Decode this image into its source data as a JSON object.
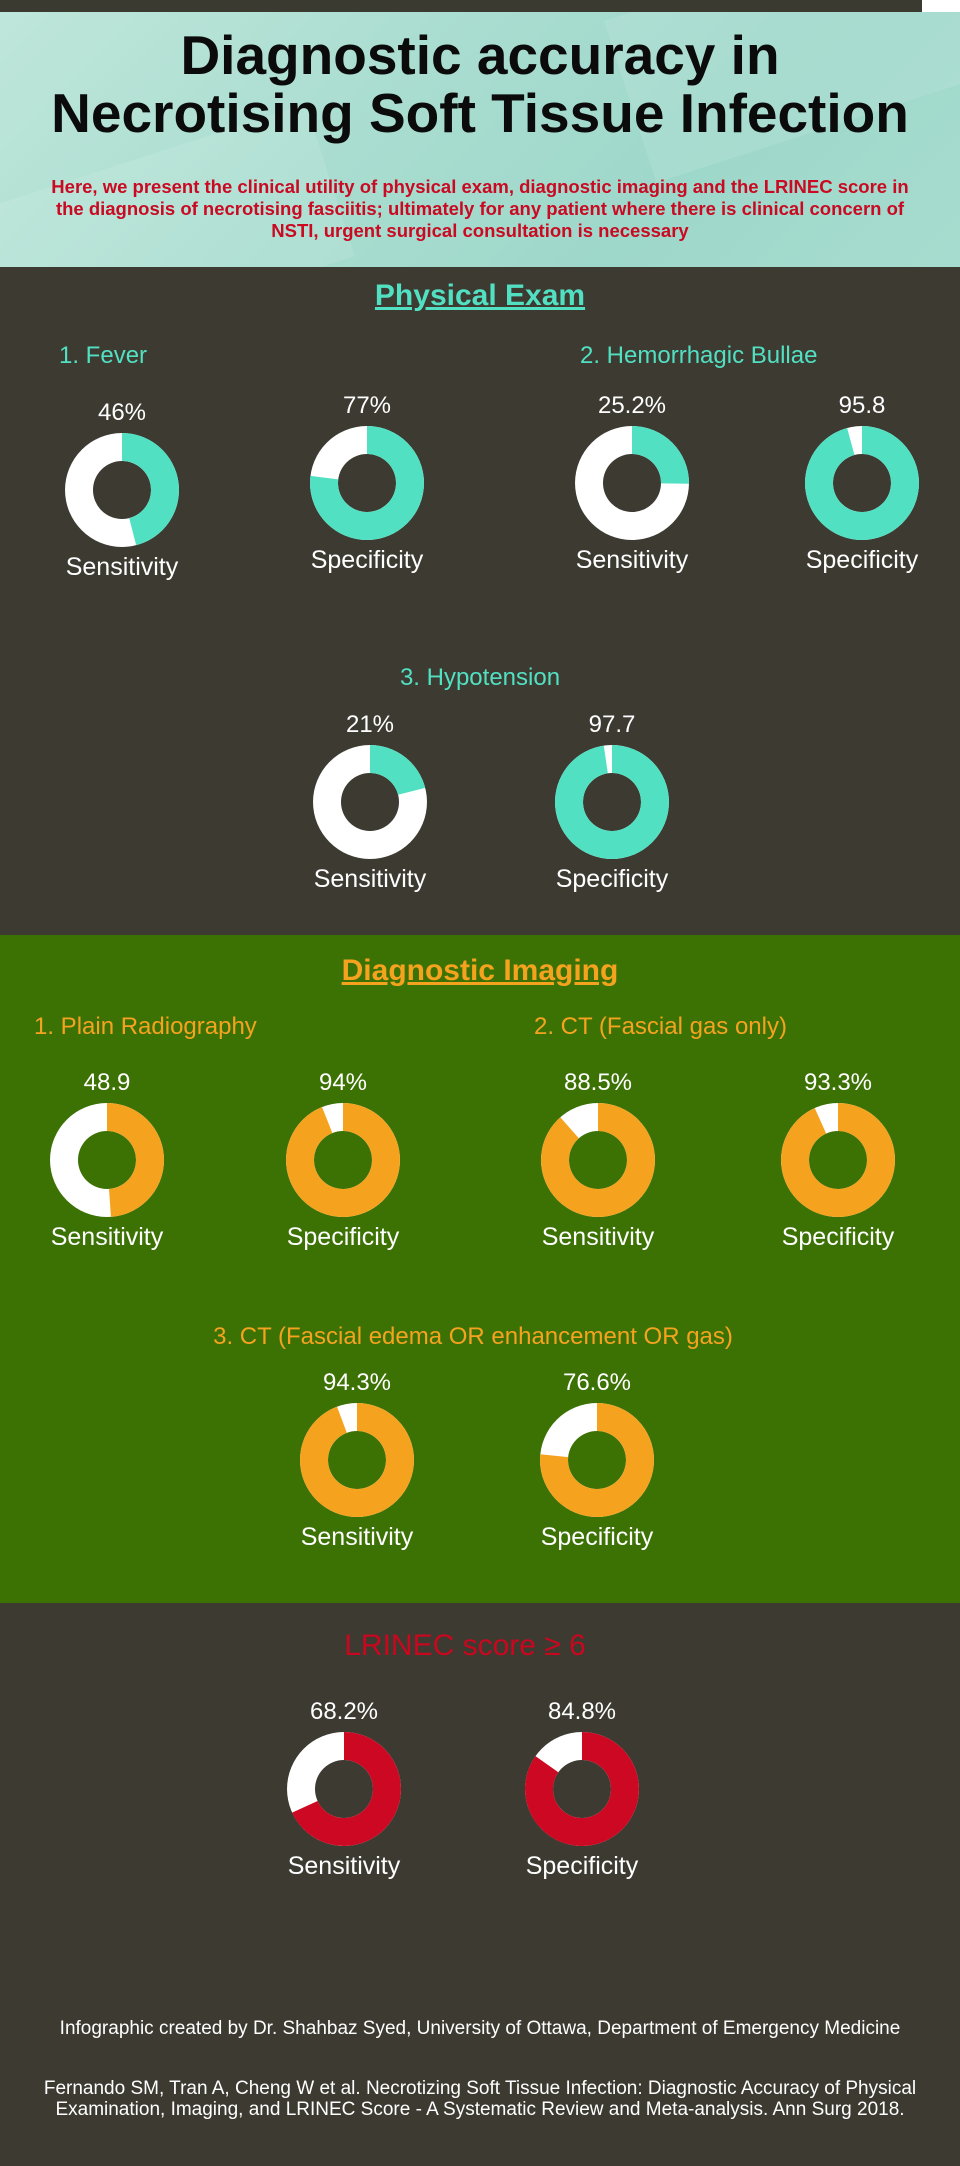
{
  "header": {
    "title": "Diagnostic accuracy in\nNecrotising Soft Tissue Infection",
    "intro": "Here, we present the clinical utility of physical exam, diagnostic imaging and the LRINEC score in the diagnosis of necrotising fasciitis; ultimately  for any patient where there is clinical concern  of NSTI, urgent surgical consultation is necessary"
  },
  "physical": {
    "heading": "Physical Exam",
    "sub1": "1. Fever",
    "sub2": "2. Hemorrhagic Bullae",
    "sub3": "3. Hypotension"
  },
  "imaging": {
    "heading": "Diagnostic Imaging",
    "sub1": "1. Plain Radiography",
    "sub2": "2. CT (Fascial gas only)",
    "sub3": "3. CT (Fascial edema OR enhancement OR gas)"
  },
  "lrinec": {
    "heading": "LRINEC score ≥ 6"
  },
  "colors": {
    "physical": "#52e0c3",
    "imaging": "#f5a31f",
    "lrinec": "#cc0822",
    "remainder": "#ffffff",
    "dark": "#3c3a31",
    "green": "#3c7204"
  },
  "chart_data": {
    "type": "pie",
    "variant": "donut",
    "items": [
      {
        "id": "fever-sens",
        "group": "Physical Exam",
        "test": "1. Fever",
        "measure": "Sensitivity",
        "value_label": "46%",
        "value": 46
      },
      {
        "id": "fever-spec",
        "group": "Physical Exam",
        "test": "1. Fever",
        "measure": "Specificity",
        "value_label": "77%",
        "value": 77
      },
      {
        "id": "bullae-sens",
        "group": "Physical Exam",
        "test": "2. Hemorrhagic Bullae",
        "measure": "Sensitivity",
        "value_label": "25.2%",
        "value": 25.2
      },
      {
        "id": "bullae-spec",
        "group": "Physical Exam",
        "test": "2. Hemorrhagic Bullae",
        "measure": "Specificity",
        "value_label": "95.8",
        "value": 95.8
      },
      {
        "id": "hypo-sens",
        "group": "Physical Exam",
        "test": "3. Hypotension",
        "measure": "Sensitivity",
        "value_label": "21%",
        "value": 21
      },
      {
        "id": "hypo-spec",
        "group": "Physical Exam",
        "test": "3. Hypotension",
        "measure": "Specificity",
        "value_label": "97.7",
        "value": 97.7
      },
      {
        "id": "xray-sens",
        "group": "Diagnostic Imaging",
        "test": "1. Plain Radiography",
        "measure": "Sensitivity",
        "value_label": "48.9",
        "value": 48.9
      },
      {
        "id": "xray-spec",
        "group": "Diagnostic Imaging",
        "test": "1. Plain Radiography",
        "measure": "Specificity",
        "value_label": "94%",
        "value": 94
      },
      {
        "id": "ctgas-sens",
        "group": "Diagnostic Imaging",
        "test": "2. CT (Fascial gas only)",
        "measure": "Sensitivity",
        "value_label": "88.5%",
        "value": 88.5
      },
      {
        "id": "ctgas-spec",
        "group": "Diagnostic Imaging",
        "test": "2. CT (Fascial gas only)",
        "measure": "Specificity",
        "value_label": "93.3%",
        "value": 93.3
      },
      {
        "id": "ctany-sens",
        "group": "Diagnostic Imaging",
        "test": "3. CT (Fascial edema OR enhancement OR gas)",
        "measure": "Sensitivity",
        "value_label": "94.3%",
        "value": 94.3
      },
      {
        "id": "ctany-spec",
        "group": "Diagnostic Imaging",
        "test": "3. CT (Fascial edema OR enhancement OR gas)",
        "measure": "Specificity",
        "value_label": "76.6%",
        "value": 76.6
      },
      {
        "id": "lrinec-sens",
        "group": "LRINEC score ≥ 6",
        "test": "LRINEC score ≥ 6",
        "measure": "Sensitivity",
        "value_label": "68.2%",
        "value": 68.2
      },
      {
        "id": "lrinec-spec",
        "group": "LRINEC score ≥ 6",
        "test": "LRINEC score ≥ 6",
        "measure": "Specificity",
        "value_label": "84.8%",
        "value": 84.8
      }
    ]
  },
  "footer": {
    "credit": "Infographic created by Dr. Shahbaz Syed, University of Ottawa, Department of Emergency Medicine",
    "citation": "Fernando SM, Tran A, Cheng W et al. Necrotizing Soft Tissue Infection: Diagnostic Accuracy of Physical Examination, Imaging, and LRINEC Score - A Systematic Review and Meta-analysis. Ann Surg 2018."
  }
}
